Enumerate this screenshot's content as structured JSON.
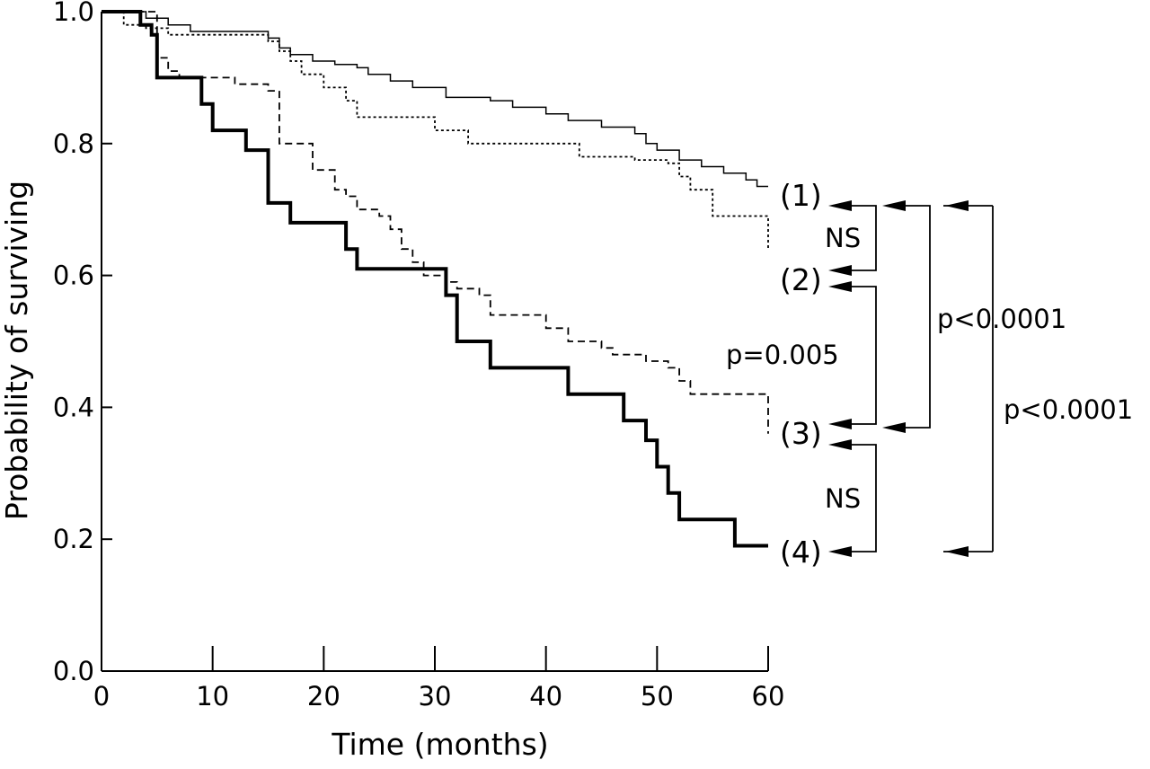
{
  "chart_data": {
    "type": "line",
    "title": "",
    "xlabel": "Time (months)",
    "ylabel": "Probability of surviving",
    "xlim": [
      0,
      60
    ],
    "ylim": [
      0.0,
      1.0
    ],
    "x_ticks": [
      "0",
      "10",
      "20",
      "30",
      "40",
      "50",
      "60"
    ],
    "y_ticks": [
      "0.0",
      "0.2",
      "0.4",
      "0.6",
      "0.8",
      "1.0"
    ],
    "grid": false,
    "legend": "none",
    "series": [
      {
        "name": "(1)",
        "style": "thin-solid",
        "points": [
          [
            0,
            1.0
          ],
          [
            4,
            1.0
          ],
          [
            4,
            0.99
          ],
          [
            6,
            0.99
          ],
          [
            6,
            0.98
          ],
          [
            8,
            0.98
          ],
          [
            8,
            0.97
          ],
          [
            15,
            0.97
          ],
          [
            15,
            0.96
          ],
          [
            16,
            0.96
          ],
          [
            16,
            0.945
          ],
          [
            17,
            0.945
          ],
          [
            17,
            0.935
          ],
          [
            19,
            0.935
          ],
          [
            19,
            0.925
          ],
          [
            21,
            0.925
          ],
          [
            21,
            0.92
          ],
          [
            23,
            0.92
          ],
          [
            23,
            0.915
          ],
          [
            24,
            0.915
          ],
          [
            24,
            0.905
          ],
          [
            26,
            0.905
          ],
          [
            26,
            0.895
          ],
          [
            28,
            0.895
          ],
          [
            28,
            0.885
          ],
          [
            31,
            0.885
          ],
          [
            31,
            0.87
          ],
          [
            35,
            0.87
          ],
          [
            35,
            0.865
          ],
          [
            37,
            0.865
          ],
          [
            37,
            0.855
          ],
          [
            40,
            0.855
          ],
          [
            40,
            0.845
          ],
          [
            42,
            0.845
          ],
          [
            42,
            0.835
          ],
          [
            45,
            0.835
          ],
          [
            45,
            0.825
          ],
          [
            48,
            0.825
          ],
          [
            48,
            0.815
          ],
          [
            49,
            0.815
          ],
          [
            49,
            0.8
          ],
          [
            50,
            0.8
          ],
          [
            50,
            0.79
          ],
          [
            52,
            0.79
          ],
          [
            52,
            0.775
          ],
          [
            54,
            0.775
          ],
          [
            54,
            0.765
          ],
          [
            56,
            0.765
          ],
          [
            56,
            0.755
          ],
          [
            58,
            0.755
          ],
          [
            58,
            0.745
          ],
          [
            59,
            0.745
          ],
          [
            59,
            0.735
          ],
          [
            60,
            0.735
          ]
        ]
      },
      {
        "name": "(2)",
        "style": "dotted",
        "points": [
          [
            0,
            1.0
          ],
          [
            2,
            1.0
          ],
          [
            2,
            0.98
          ],
          [
            4,
            0.98
          ],
          [
            4,
            0.975
          ],
          [
            6,
            0.975
          ],
          [
            6,
            0.965
          ],
          [
            15,
            0.965
          ],
          [
            15,
            0.955
          ],
          [
            16,
            0.955
          ],
          [
            16,
            0.94
          ],
          [
            17,
            0.94
          ],
          [
            17,
            0.925
          ],
          [
            18,
            0.925
          ],
          [
            18,
            0.905
          ],
          [
            20,
            0.905
          ],
          [
            20,
            0.885
          ],
          [
            22,
            0.885
          ],
          [
            22,
            0.865
          ],
          [
            23,
            0.865
          ],
          [
            23,
            0.84
          ],
          [
            30,
            0.84
          ],
          [
            30,
            0.82
          ],
          [
            33,
            0.82
          ],
          [
            33,
            0.8
          ],
          [
            43,
            0.8
          ],
          [
            43,
            0.78
          ],
          [
            48,
            0.78
          ],
          [
            48,
            0.775
          ],
          [
            51,
            0.775
          ],
          [
            51,
            0.77
          ],
          [
            52,
            0.77
          ],
          [
            52,
            0.75
          ],
          [
            53,
            0.75
          ],
          [
            53,
            0.73
          ],
          [
            55,
            0.73
          ],
          [
            55,
            0.69
          ],
          [
            60,
            0.69
          ],
          [
            60,
            0.64
          ]
        ]
      },
      {
        "name": "(3)",
        "style": "dashed",
        "points": [
          [
            0,
            1.0
          ],
          [
            5,
            1.0
          ],
          [
            5,
            0.93
          ],
          [
            6,
            0.93
          ],
          [
            6,
            0.91
          ],
          [
            7,
            0.91
          ],
          [
            7,
            0.9
          ],
          [
            12,
            0.9
          ],
          [
            12,
            0.89
          ],
          [
            15,
            0.89
          ],
          [
            15,
            0.88
          ],
          [
            16,
            0.88
          ],
          [
            16,
            0.8
          ],
          [
            19,
            0.8
          ],
          [
            19,
            0.76
          ],
          [
            21,
            0.76
          ],
          [
            21,
            0.73
          ],
          [
            22,
            0.73
          ],
          [
            22,
            0.72
          ],
          [
            23,
            0.72
          ],
          [
            23,
            0.7
          ],
          [
            25,
            0.7
          ],
          [
            25,
            0.69
          ],
          [
            26,
            0.69
          ],
          [
            26,
            0.67
          ],
          [
            27,
            0.67
          ],
          [
            27,
            0.64
          ],
          [
            28,
            0.64
          ],
          [
            28,
            0.62
          ],
          [
            29,
            0.62
          ],
          [
            29,
            0.6
          ],
          [
            31,
            0.6
          ],
          [
            31,
            0.59
          ],
          [
            32,
            0.59
          ],
          [
            32,
            0.58
          ],
          [
            34,
            0.58
          ],
          [
            34,
            0.57
          ],
          [
            35,
            0.57
          ],
          [
            35,
            0.54
          ],
          [
            40,
            0.54
          ],
          [
            40,
            0.52
          ],
          [
            42,
            0.52
          ],
          [
            42,
            0.5
          ],
          [
            45,
            0.5
          ],
          [
            45,
            0.49
          ],
          [
            46,
            0.49
          ],
          [
            46,
            0.48
          ],
          [
            49,
            0.48
          ],
          [
            49,
            0.47
          ],
          [
            51,
            0.47
          ],
          [
            51,
            0.46
          ],
          [
            52,
            0.46
          ],
          [
            52,
            0.44
          ],
          [
            53,
            0.44
          ],
          [
            53,
            0.42
          ],
          [
            60,
            0.42
          ],
          [
            60,
            0.36
          ]
        ]
      },
      {
        "name": "(4)",
        "style": "thick-solid",
        "points": [
          [
            0,
            1.0
          ],
          [
            3.5,
            1.0
          ],
          [
            3.5,
            0.98
          ],
          [
            4.5,
            0.98
          ],
          [
            4.5,
            0.965
          ],
          [
            5,
            0.965
          ],
          [
            5,
            0.9
          ],
          [
            9,
            0.9
          ],
          [
            9,
            0.86
          ],
          [
            10,
            0.86
          ],
          [
            10,
            0.82
          ],
          [
            13,
            0.82
          ],
          [
            13,
            0.79
          ],
          [
            15,
            0.79
          ],
          [
            15,
            0.71
          ],
          [
            17,
            0.71
          ],
          [
            17,
            0.68
          ],
          [
            22,
            0.68
          ],
          [
            22,
            0.64
          ],
          [
            23,
            0.64
          ],
          [
            23,
            0.61
          ],
          [
            31,
            0.61
          ],
          [
            31,
            0.57
          ],
          [
            32,
            0.57
          ],
          [
            32,
            0.5
          ],
          [
            35,
            0.5
          ],
          [
            35,
            0.46
          ],
          [
            42,
            0.46
          ],
          [
            42,
            0.42
          ],
          [
            47,
            0.42
          ],
          [
            47,
            0.38
          ],
          [
            49,
            0.38
          ],
          [
            49,
            0.35
          ],
          [
            50,
            0.35
          ],
          [
            50,
            0.31
          ],
          [
            51,
            0.31
          ],
          [
            51,
            0.27
          ],
          [
            52,
            0.27
          ],
          [
            52,
            0.23
          ],
          [
            57,
            0.23
          ],
          [
            57,
            0.19
          ],
          [
            60,
            0.19
          ]
        ]
      }
    ],
    "curve_labels": [
      "(1)",
      "(2)",
      "(3)",
      "(4)"
    ],
    "comparisons": [
      {
        "between": [
          "(1)",
          "(2)"
        ],
        "text": "NS"
      },
      {
        "between": [
          "(2)",
          "(3)"
        ],
        "text": "p=0.005"
      },
      {
        "between": [
          "(1)",
          "(3)"
        ],
        "text": "p<0.0001"
      },
      {
        "between": [
          "(3)",
          "(4)"
        ],
        "text": "NS"
      },
      {
        "between": [
          "(1)",
          "(4)"
        ],
        "text": "p<0.0001"
      }
    ]
  }
}
